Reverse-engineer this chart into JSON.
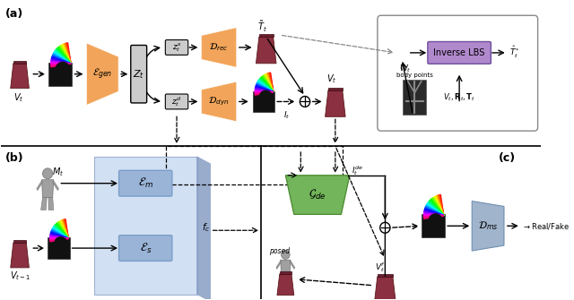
{
  "fig_width": 6.4,
  "fig_height": 3.35,
  "dpi": 100,
  "bg_color": "#ffffff",
  "orange": "#F2A55A",
  "blue_light": "#B8CCE8",
  "blue_dark": "#7A9EC8",
  "blue_mid": "#9AB4D8",
  "green": "#72B55A",
  "purple": "#B088CC",
  "gray_box": "#CCCCCC",
  "gray_dark": "#888888",
  "skirt_color": "#8B3040",
  "body_color": "#A0A0A0",
  "panel_a": "(a)",
  "panel_b": "(b)",
  "panel_c": "(c)"
}
